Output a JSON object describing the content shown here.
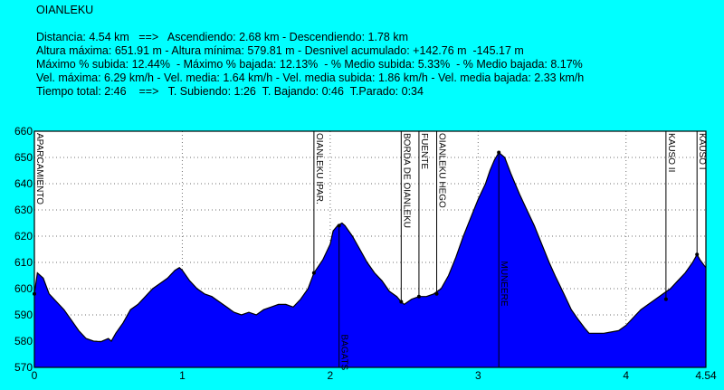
{
  "title": "OIANLEKU",
  "stats": [
    "Distancia: 4.54 km   ==>   Ascendiendo: 2.68 km - Descendiendo: 1.78 km",
    "Altura máxima: 651.91 m - Altura mínima: 579.81 m - Desnivel acumulado: +142.76 m  -145.17 m",
    "Máximo % subida: 12.44%  - Máximo % bajada: 12.13%  - % Medio subida: 5.33%  - % Medio bajada: 8.17%",
    "Vel. máxima: 6.29 km/h - Vel. media: 1.64 km/h - Vel. media subida: 1.86 km/h - Vel. media bajada: 2.33 km/h",
    "Tiempo total: 2:46    ==>   T. Subiendo: 1:26  T. Bajando: 0:46  T.Parado: 0:34"
  ],
  "chart_data": {
    "type": "area",
    "xlim": [
      0,
      4.54
    ],
    "ylim": [
      570,
      660
    ],
    "x_ticks": [
      "0",
      "1",
      "2",
      "3",
      "4",
      "4.54"
    ],
    "x_tick_values": [
      0,
      1,
      2,
      3,
      4,
      4.54
    ],
    "y_ticks": [
      570,
      580,
      590,
      600,
      610,
      620,
      630,
      640,
      650,
      660
    ],
    "grid": true,
    "colors": {
      "fill": "#0000ff",
      "line": "#000000",
      "background": "#00ffff",
      "plot_bg": "#ffffff"
    },
    "profile": [
      [
        0.0,
        598
      ],
      [
        0.02,
        606
      ],
      [
        0.06,
        604
      ],
      [
        0.1,
        598
      ],
      [
        0.15,
        595
      ],
      [
        0.2,
        592
      ],
      [
        0.25,
        588
      ],
      [
        0.3,
        584
      ],
      [
        0.35,
        581
      ],
      [
        0.4,
        580
      ],
      [
        0.45,
        579.8
      ],
      [
        0.5,
        581
      ],
      [
        0.52,
        580
      ],
      [
        0.55,
        583
      ],
      [
        0.6,
        587
      ],
      [
        0.65,
        592
      ],
      [
        0.7,
        594
      ],
      [
        0.75,
        597
      ],
      [
        0.8,
        600
      ],
      [
        0.85,
        602
      ],
      [
        0.9,
        604
      ],
      [
        0.95,
        607
      ],
      [
        0.98,
        608
      ],
      [
        1.0,
        607
      ],
      [
        1.05,
        603
      ],
      [
        1.1,
        600
      ],
      [
        1.15,
        598
      ],
      [
        1.2,
        597
      ],
      [
        1.25,
        595
      ],
      [
        1.3,
        593
      ],
      [
        1.35,
        591
      ],
      [
        1.4,
        590
      ],
      [
        1.45,
        591
      ],
      [
        1.5,
        590
      ],
      [
        1.55,
        592
      ],
      [
        1.6,
        593
      ],
      [
        1.65,
        594
      ],
      [
        1.7,
        594
      ],
      [
        1.75,
        593
      ],
      [
        1.8,
        596
      ],
      [
        1.85,
        600
      ],
      [
        1.89,
        606
      ],
      [
        1.95,
        611
      ],
      [
        2.0,
        617
      ],
      [
        2.02,
        622
      ],
      [
        2.05,
        624
      ],
      [
        2.08,
        625
      ],
      [
        2.1,
        624
      ],
      [
        2.15,
        620
      ],
      [
        2.2,
        615
      ],
      [
        2.25,
        610
      ],
      [
        2.3,
        606
      ],
      [
        2.35,
        603
      ],
      [
        2.4,
        599
      ],
      [
        2.45,
        597
      ],
      [
        2.48,
        595
      ],
      [
        2.5,
        594
      ],
      [
        2.55,
        596
      ],
      [
        2.6,
        597
      ],
      [
        2.65,
        597
      ],
      [
        2.7,
        598
      ],
      [
        2.75,
        600
      ],
      [
        2.8,
        605
      ],
      [
        2.85,
        612
      ],
      [
        2.9,
        620
      ],
      [
        2.95,
        627
      ],
      [
        3.0,
        634
      ],
      [
        3.05,
        640
      ],
      [
        3.08,
        645
      ],
      [
        3.11,
        649
      ],
      [
        3.14,
        651.9
      ],
      [
        3.18,
        650
      ],
      [
        3.22,
        644
      ],
      [
        3.28,
        636
      ],
      [
        3.33,
        630
      ],
      [
        3.38,
        624
      ],
      [
        3.43,
        617
      ],
      [
        3.48,
        610
      ],
      [
        3.52,
        605
      ],
      [
        3.58,
        598
      ],
      [
        3.63,
        592
      ],
      [
        3.68,
        588
      ],
      [
        3.72,
        585
      ],
      [
        3.75,
        583
      ],
      [
        3.8,
        583
      ],
      [
        3.85,
        583
      ],
      [
        3.9,
        583.5
      ],
      [
        3.95,
        584
      ],
      [
        4.0,
        586
      ],
      [
        4.05,
        589
      ],
      [
        4.1,
        592
      ],
      [
        4.15,
        594
      ],
      [
        4.2,
        596
      ],
      [
        4.25,
        598
      ],
      [
        4.3,
        600
      ],
      [
        4.35,
        603
      ],
      [
        4.4,
        606
      ],
      [
        4.45,
        610
      ],
      [
        4.48,
        613
      ],
      [
        4.5,
        611
      ],
      [
        4.54,
        608
      ]
    ],
    "waypoints": [
      {
        "x": 0.0,
        "y": 598,
        "label": "APARCAMIENTO",
        "side": "top"
      },
      {
        "x": 1.89,
        "y": 606,
        "label": "OIANLEKU IPAR.",
        "side": "top"
      },
      {
        "x": 2.06,
        "y": 624,
        "label": "BAGATS",
        "side": "bottom"
      },
      {
        "x": 2.48,
        "y": 595,
        "label": "BORDA DE OIANLEKU",
        "side": "top"
      },
      {
        "x": 2.6,
        "y": 597,
        "label": "FUENTE",
        "side": "top"
      },
      {
        "x": 2.72,
        "y": 598,
        "label": "OIANLEKU HEGO",
        "side": "top"
      },
      {
        "x": 3.14,
        "y": 651.9,
        "label": "MUNEERE",
        "side": "bottom"
      },
      {
        "x": 4.27,
        "y": 596,
        "label": "KAUSO II",
        "side": "top"
      },
      {
        "x": 4.48,
        "y": 613,
        "label": "KAUSO I",
        "side": "top"
      }
    ]
  }
}
